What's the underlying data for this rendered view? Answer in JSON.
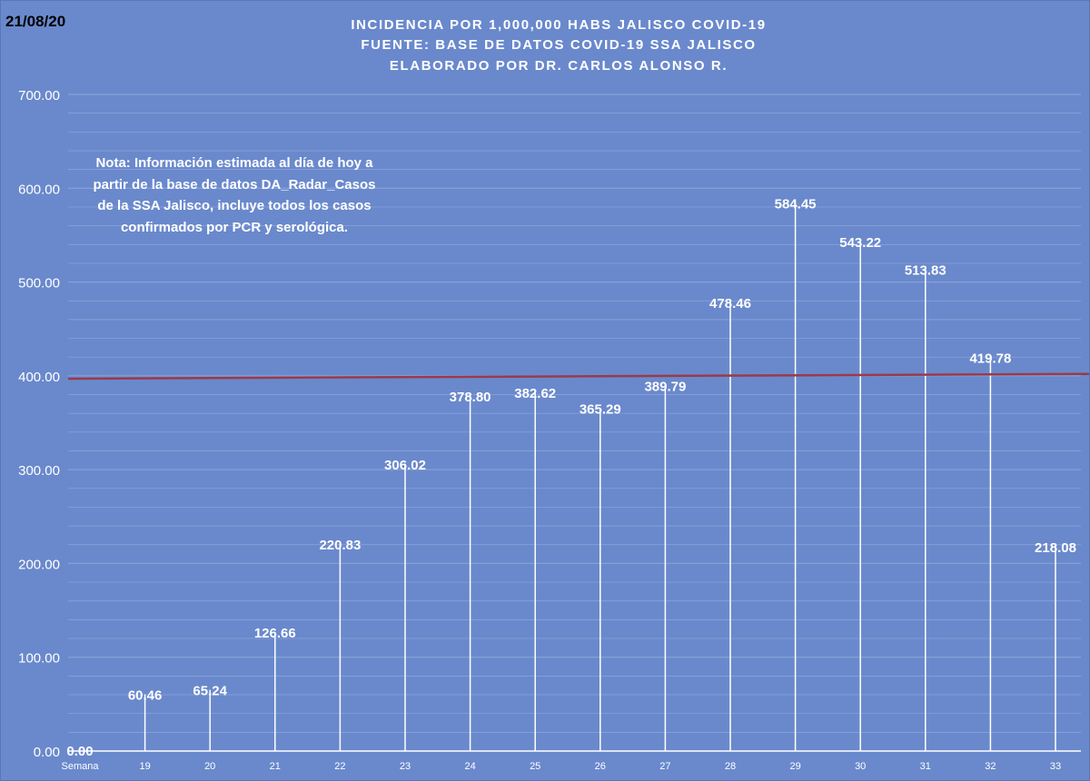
{
  "date_stamp": "21/08/20",
  "title_lines": [
    "INCIDENCIA POR 1,000,000 HABS JALISCO COVID-19",
    "FUENTE: BASE DE DATOS COVID-19 SSA JALISCO",
    "ELABORADO POR DR. CARLOS ALONSO R."
  ],
  "note": "Nota: Información estimada al día de hoy a partir de la base de datos DA_Radar_Casos de la SSA Jalisco, incluye todos los casos confirmados por PCR y serológica.",
  "colors": {
    "background": "#6a89cc",
    "bars": "#ffffff",
    "gridlines": "#8ea5d9",
    "reference_line": "#9b3a4a"
  },
  "chart_data": {
    "type": "bar",
    "categories": [
      "Semana",
      "19",
      "20",
      "21",
      "22",
      "23",
      "24",
      "25",
      "26",
      "27",
      "28",
      "29",
      "30",
      "31",
      "32",
      "33"
    ],
    "values": [
      0.0,
      60.46,
      65.24,
      126.66,
      220.83,
      306.02,
      378.8,
      382.62,
      365.29,
      389.79,
      478.46,
      584.45,
      543.22,
      513.83,
      419.78,
      218.08
    ],
    "data_labels": [
      "0.00",
      "60.46",
      "65.24",
      "126.66",
      "220.83",
      "306.02",
      "378.80",
      "382.62",
      "365.29",
      "389.79",
      "478.46",
      "584.45",
      "543.22",
      "513.83",
      "419.78",
      "218.08"
    ],
    "y_tick_labels": [
      "0.00",
      "100.00",
      "200.00",
      "300.00",
      "400.00",
      "500.00",
      "600.00",
      "700.00"
    ],
    "ylim": [
      0,
      700
    ],
    "minor_grid_step": 20,
    "reference_line": {
      "from": 397,
      "to": 402
    },
    "grid": true,
    "legend": "none"
  }
}
